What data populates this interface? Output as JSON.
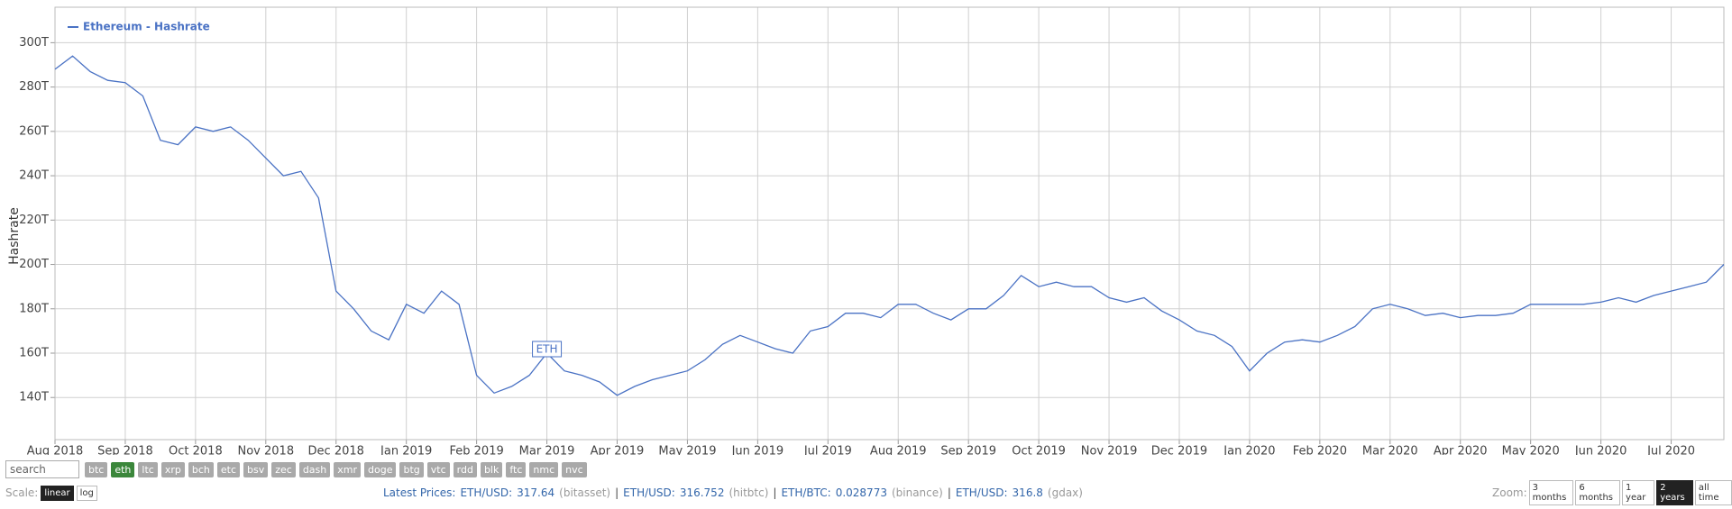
{
  "chart_data": {
    "type": "line",
    "y_label": "Hashrate",
    "annotation": "ETH",
    "categories": [
      "Aug 2018",
      null,
      null,
      null,
      "Sep 2018",
      null,
      null,
      null,
      "Oct 2018",
      null,
      null,
      null,
      "Nov 2018",
      null,
      null,
      null,
      "Dec 2018",
      null,
      null,
      null,
      "Jan 2019",
      null,
      null,
      null,
      "Feb 2019",
      null,
      null,
      null,
      "Mar 2019",
      null,
      null,
      null,
      "Apr 2019",
      null,
      null,
      null,
      "May 2019",
      null,
      null,
      null,
      "Jun 2019",
      null,
      null,
      null,
      "Jul 2019",
      null,
      null,
      null,
      "Aug 2019",
      null,
      null,
      null,
      "Sep 2019",
      null,
      null,
      null,
      "Oct 2019",
      null,
      null,
      null,
      "Nov 2019",
      null,
      null,
      null,
      "Dec 2019",
      null,
      null,
      null,
      "Jan 2020",
      null,
      null,
      null,
      "Feb 2020",
      null,
      null,
      null,
      "Mar 2020",
      null,
      null,
      null,
      "Apr 2020",
      null,
      null,
      null,
      "May 2020",
      null,
      null,
      null,
      "Jun 2020",
      null,
      null,
      null,
      "Jul 2020",
      null,
      null,
      null
    ],
    "series": [
      {
        "name": "Ethereum - Hashrate",
        "color": "#4a72c4",
        "values": [
          288,
          294,
          287,
          283,
          282,
          276,
          256,
          254,
          262,
          260,
          262,
          256,
          248,
          240,
          242,
          230,
          188,
          180,
          170,
          166,
          182,
          178,
          188,
          182,
          150,
          142,
          145,
          150,
          160,
          152,
          150,
          147,
          141,
          145,
          148,
          150,
          152,
          157,
          164,
          168,
          165,
          162,
          160,
          170,
          172,
          178,
          178,
          176,
          182,
          182,
          178,
          175,
          180,
          180,
          186,
          195,
          190,
          192,
          190,
          190,
          185,
          183,
          185,
          179,
          175,
          170,
          168,
          163,
          152,
          160,
          165,
          166,
          165,
          168,
          172,
          180,
          182,
          180,
          177,
          178,
          176,
          177,
          177,
          178,
          182,
          182,
          182,
          182,
          183,
          185,
          183,
          186,
          188,
          190,
          192,
          200
        ]
      }
    ],
    "ylim": [
      121,
      316
    ],
    "yticks": [
      {
        "value": 140,
        "label": "140T"
      },
      {
        "value": 160,
        "label": "160T"
      },
      {
        "value": 180,
        "label": "180T"
      },
      {
        "value": 200,
        "label": "200T"
      },
      {
        "value": 220,
        "label": "220T"
      },
      {
        "value": 240,
        "label": "240T"
      },
      {
        "value": 260,
        "label": "260T"
      },
      {
        "value": 280,
        "label": "280T"
      },
      {
        "value": 300,
        "label": "300T"
      }
    ],
    "grid": true
  },
  "ui": {
    "search_placeholder": "search",
    "coins": [
      "btc",
      "eth",
      "ltc",
      "xrp",
      "bch",
      "etc",
      "bsv",
      "zec",
      "dash",
      "xmr",
      "doge",
      "btg",
      "vtc",
      "rdd",
      "blk",
      "ftc",
      "nmc",
      "nvc"
    ],
    "active_coin": "eth",
    "scale": {
      "label": "Scale:",
      "options": [
        "linear",
        "log"
      ],
      "active": "linear"
    },
    "prices": {
      "label": "Latest Prices:",
      "separator": "|",
      "items": [
        {
          "pair": "ETH/USD:",
          "value": 317.64,
          "source": "(bitasset)"
        },
        {
          "pair": "ETH/USD:",
          "value": 316.752,
          "source": "(hitbtc)"
        },
        {
          "pair": "ETH/BTC:",
          "value": 0.028773,
          "source": "(binance)"
        },
        {
          "pair": "ETH/USD:",
          "value": 316.8,
          "source": "(gdax)"
        }
      ]
    },
    "zoom": {
      "label": "Zoom:",
      "options": [
        "3 months",
        "6 months",
        "1 year",
        "2 years",
        "all time"
      ],
      "active": "2 years"
    }
  }
}
